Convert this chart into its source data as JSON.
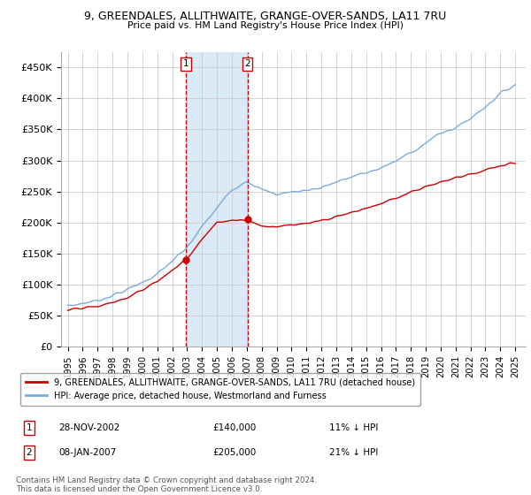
{
  "title": "9, GREENDALES, ALLITHWAITE, GRANGE-OVER-SANDS, LA11 7RU",
  "subtitle": "Price paid vs. HM Land Registry's House Price Index (HPI)",
  "ylim": [
    0,
    475000
  ],
  "yticks": [
    0,
    50000,
    100000,
    150000,
    200000,
    250000,
    300000,
    350000,
    400000,
    450000
  ],
  "ytick_labels": [
    "£0",
    "£50K",
    "£100K",
    "£150K",
    "£200K",
    "£250K",
    "£300K",
    "£350K",
    "£400K",
    "£450K"
  ],
  "sale1_year": 2002.91,
  "sale1_price": 140000,
  "sale1_label": "1",
  "sale1_date_str": "28-NOV-2002",
  "sale1_below_pct": "11%",
  "sale2_year": 2007.04,
  "sale2_price": 205000,
  "sale2_label": "2",
  "sale2_date_str": "08-JAN-2007",
  "sale2_below_pct": "21%",
  "hpi_color": "#7aabdc",
  "sale_color": "#cc0000",
  "shade_color": "#daeaf7",
  "vline_color": "#cc0000",
  "background_color": "#ffffff",
  "legend_house_label": "9, GREENDALES, ALLITHWAITE, GRANGE-OVER-SANDS, LA11 7RU (detached house)",
  "legend_hpi_label": "HPI: Average price, detached house, Westmorland and Furness",
  "footer": "Contains HM Land Registry data © Crown copyright and database right 2024.\nThis data is licensed under the Open Government Licence v3.0.",
  "hpi_anchors_t": [
    0,
    2,
    4,
    6,
    7.91,
    9,
    10,
    11,
    12,
    13,
    14,
    15,
    16,
    17,
    18,
    19,
    20,
    21,
    22,
    23,
    24,
    25,
    26,
    27,
    28,
    29,
    30
  ],
  "hpi_anchors_v": [
    65000,
    75000,
    92000,
    118000,
    158000,
    195000,
    225000,
    255000,
    270000,
    255000,
    248000,
    252000,
    255000,
    260000,
    268000,
    275000,
    282000,
    290000,
    300000,
    315000,
    330000,
    345000,
    355000,
    370000,
    390000,
    410000,
    425000
  ],
  "sale_anchors_t": [
    0,
    2,
    4,
    6,
    7.91,
    9,
    10,
    11,
    12,
    13,
    14,
    15,
    16,
    17,
    18,
    19,
    20,
    21,
    22,
    23,
    24,
    25,
    26,
    27,
    28,
    29,
    30
  ],
  "sale_anchors_v": [
    58000,
    65000,
    78000,
    105000,
    140000,
    175000,
    200000,
    205000,
    205000,
    195000,
    195000,
    198000,
    200000,
    205000,
    212000,
    218000,
    225000,
    232000,
    240000,
    250000,
    258000,
    265000,
    272000,
    278000,
    285000,
    292000,
    298000
  ]
}
